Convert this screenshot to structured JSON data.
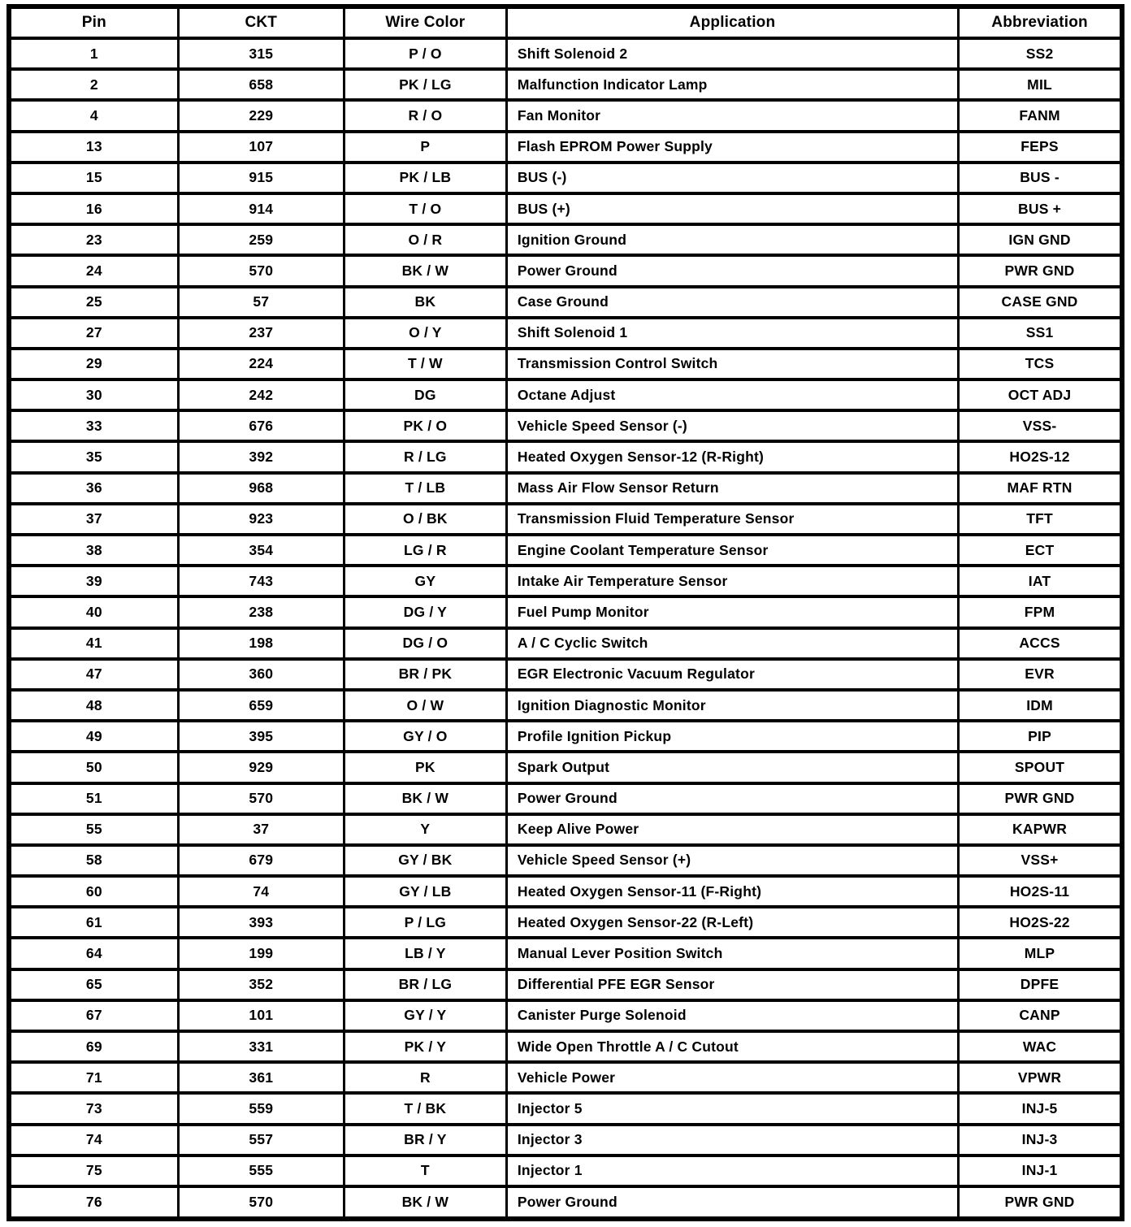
{
  "colors": {
    "border": "#000000",
    "background": "#ffffff",
    "text": "#000000"
  },
  "table": {
    "headers": [
      "Pin",
      "CKT",
      "Wire Color",
      "Application",
      "Abbreviation"
    ],
    "rows": [
      {
        "pin": "1",
        "ckt": "315",
        "wire_color": "P / O",
        "application": "Shift Solenoid 2",
        "abbreviation": "SS2"
      },
      {
        "pin": "2",
        "ckt": "658",
        "wire_color": "PK / LG",
        "application": "Malfunction Indicator Lamp",
        "abbreviation": "MIL"
      },
      {
        "pin": "4",
        "ckt": "229",
        "wire_color": "R / O",
        "application": "Fan Monitor",
        "abbreviation": "FANM"
      },
      {
        "pin": "13",
        "ckt": "107",
        "wire_color": "P",
        "application": "Flash EPROM Power Supply",
        "abbreviation": "FEPS"
      },
      {
        "pin": "15",
        "ckt": "915",
        "wire_color": "PK / LB",
        "application": "BUS (-)",
        "abbreviation": "BUS -"
      },
      {
        "pin": "16",
        "ckt": "914",
        "wire_color": "T / O",
        "application": "BUS (+)",
        "abbreviation": "BUS +"
      },
      {
        "pin": "23",
        "ckt": "259",
        "wire_color": "O / R",
        "application": "Ignition Ground",
        "abbreviation": "IGN GND"
      },
      {
        "pin": "24",
        "ckt": "570",
        "wire_color": "BK / W",
        "application": "Power Ground",
        "abbreviation": "PWR GND"
      },
      {
        "pin": "25",
        "ckt": "57",
        "wire_color": "BK",
        "application": "Case Ground",
        "abbreviation": "CASE GND"
      },
      {
        "pin": "27",
        "ckt": "237",
        "wire_color": "O / Y",
        "application": "Shift Solenoid 1",
        "abbreviation": "SS1"
      },
      {
        "pin": "29",
        "ckt": "224",
        "wire_color": "T / W",
        "application": "Transmission Control Switch",
        "abbreviation": "TCS"
      },
      {
        "pin": "30",
        "ckt": "242",
        "wire_color": "DG",
        "application": "Octane Adjust",
        "abbreviation": "OCT ADJ"
      },
      {
        "pin": "33",
        "ckt": "676",
        "wire_color": "PK / O",
        "application": "Vehicle Speed Sensor (-)",
        "abbreviation": "VSS-"
      },
      {
        "pin": "35",
        "ckt": "392",
        "wire_color": "R / LG",
        "application": "Heated Oxygen Sensor-12 (R-Right)",
        "abbreviation": "HO2S-12"
      },
      {
        "pin": "36",
        "ckt": "968",
        "wire_color": "T / LB",
        "application": "Mass Air Flow Sensor Return",
        "abbreviation": "MAF RTN"
      },
      {
        "pin": "37",
        "ckt": "923",
        "wire_color": "O / BK",
        "application": "Transmission Fluid Temperature Sensor",
        "abbreviation": "TFT"
      },
      {
        "pin": "38",
        "ckt": "354",
        "wire_color": "LG / R",
        "application": "Engine Coolant Temperature Sensor",
        "abbreviation": "ECT"
      },
      {
        "pin": "39",
        "ckt": "743",
        "wire_color": "GY",
        "application": "Intake Air Temperature Sensor",
        "abbreviation": "IAT"
      },
      {
        "pin": "40",
        "ckt": "238",
        "wire_color": "DG / Y",
        "application": "Fuel Pump Monitor",
        "abbreviation": "FPM"
      },
      {
        "pin": "41",
        "ckt": "198",
        "wire_color": "DG / O",
        "application": "A / C Cyclic Switch",
        "abbreviation": "ACCS"
      },
      {
        "pin": "47",
        "ckt": "360",
        "wire_color": "BR / PK",
        "application": "EGR Electronic Vacuum Regulator",
        "abbreviation": "EVR"
      },
      {
        "pin": "48",
        "ckt": "659",
        "wire_color": "O / W",
        "application": "Ignition Diagnostic Monitor",
        "abbreviation": "IDM"
      },
      {
        "pin": "49",
        "ckt": "395",
        "wire_color": "GY / O",
        "application": "Profile Ignition Pickup",
        "abbreviation": "PIP"
      },
      {
        "pin": "50",
        "ckt": "929",
        "wire_color": "PK",
        "application": "Spark Output",
        "abbreviation": "SPOUT"
      },
      {
        "pin": "51",
        "ckt": "570",
        "wire_color": "BK / W",
        "application": "Power Ground",
        "abbreviation": "PWR GND"
      },
      {
        "pin": "55",
        "ckt": "37",
        "wire_color": "Y",
        "application": "Keep Alive Power",
        "abbreviation": "KAPWR"
      },
      {
        "pin": "58",
        "ckt": "679",
        "wire_color": "GY / BK",
        "application": "Vehicle Speed Sensor (+)",
        "abbreviation": "VSS+"
      },
      {
        "pin": "60",
        "ckt": "74",
        "wire_color": "GY / LB",
        "application": "Heated Oxygen Sensor-11 (F-Right)",
        "abbreviation": "HO2S-11"
      },
      {
        "pin": "61",
        "ckt": "393",
        "wire_color": "P / LG",
        "application": "Heated Oxygen Sensor-22 (R-Left)",
        "abbreviation": "HO2S-22"
      },
      {
        "pin": "64",
        "ckt": "199",
        "wire_color": "LB / Y",
        "application": "Manual Lever Position Switch",
        "abbreviation": "MLP"
      },
      {
        "pin": "65",
        "ckt": "352",
        "wire_color": "BR / LG",
        "application": "Differential PFE EGR Sensor",
        "abbreviation": "DPFE"
      },
      {
        "pin": "67",
        "ckt": "101",
        "wire_color": "GY / Y",
        "application": "Canister Purge Solenoid",
        "abbreviation": "CANP"
      },
      {
        "pin": "69",
        "ckt": "331",
        "wire_color": "PK / Y",
        "application": "Wide Open Throttle A / C Cutout",
        "abbreviation": "WAC"
      },
      {
        "pin": "71",
        "ckt": "361",
        "wire_color": "R",
        "application": "Vehicle Power",
        "abbreviation": "VPWR"
      },
      {
        "pin": "73",
        "ckt": "559",
        "wire_color": "T / BK",
        "application": "Injector 5",
        "abbreviation": "INJ-5"
      },
      {
        "pin": "74",
        "ckt": "557",
        "wire_color": "BR / Y",
        "application": "Injector 3",
        "abbreviation": "INJ-3"
      },
      {
        "pin": "75",
        "ckt": "555",
        "wire_color": "T",
        "application": "Injector 1",
        "abbreviation": "INJ-1"
      },
      {
        "pin": "76",
        "ckt": "570",
        "wire_color": "BK / W",
        "application": "Power Ground",
        "abbreviation": "PWR GND"
      }
    ]
  }
}
